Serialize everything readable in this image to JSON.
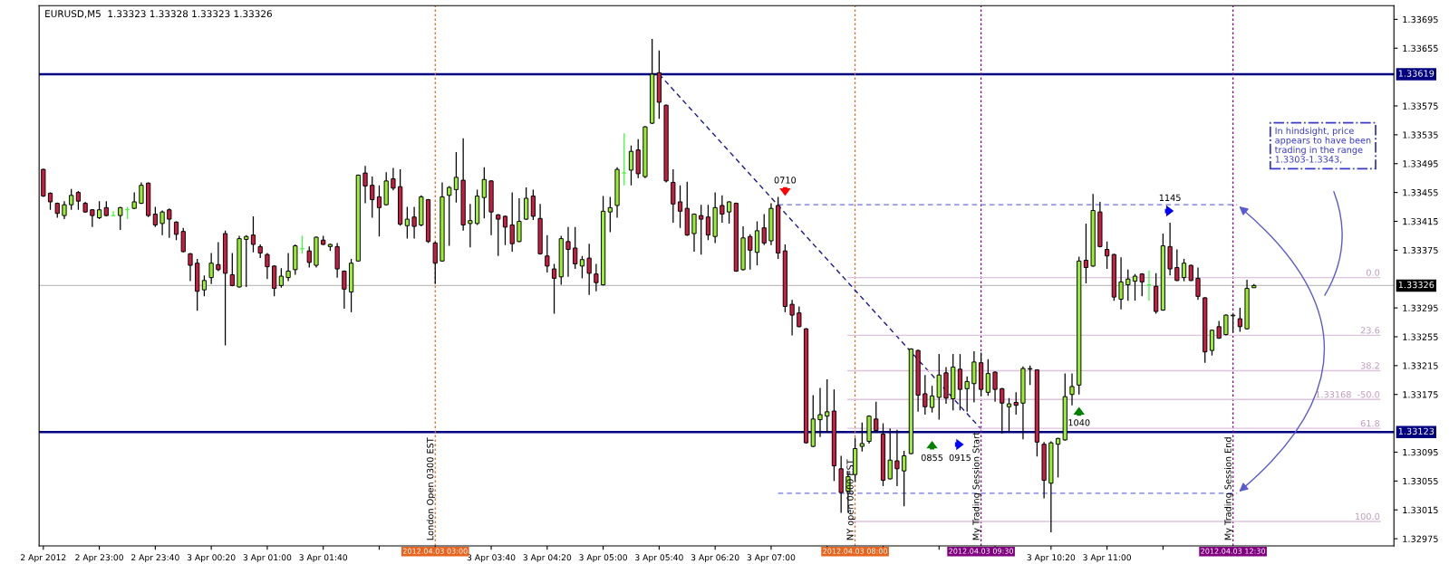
{
  "chart_data": {
    "type": "candlestick",
    "title": "EURUSD,M5  1.33323 1.33328 1.33323 1.33326",
    "x": [
      "2012-04-02T22:20",
      "2012-04-02T22:25",
      "2012-04-02T22:30",
      "2012-04-02T22:35",
      "2012-04-02T22:40",
      "2012-04-02T22:45",
      "2012-04-02T22:50",
      "2012-04-02T22:55",
      "2012-04-02T23:00",
      "2012-04-02T23:05",
      "2012-04-02T23:10",
      "2012-04-02T23:15",
      "2012-04-02T23:20",
      "2012-04-02T23:25",
      "2012-04-02T23:30",
      "2012-04-02T23:35",
      "2012-04-02T23:40",
      "2012-04-02T23:45",
      "2012-04-02T23:50",
      "2012-04-02T23:55",
      "2012-04-03T00:00",
      "2012-04-03T00:05",
      "2012-04-03T00:10",
      "2012-04-03T00:15",
      "2012-04-03T00:20",
      "2012-04-03T00:25",
      "2012-04-03T00:30",
      "2012-04-03T00:35",
      "2012-04-03T00:40",
      "2012-04-03T00:45",
      "2012-04-03T00:50",
      "2012-04-03T00:55",
      "2012-04-03T01:00",
      "2012-04-03T01:05",
      "2012-04-03T01:10",
      "2012-04-03T01:15",
      "2012-04-03T01:20",
      "2012-04-03T01:25",
      "2012-04-03T01:30",
      "2012-04-03T01:35",
      "2012-04-03T01:40",
      "2012-04-03T01:45",
      "2012-04-03T01:50",
      "2012-04-03T01:55",
      "2012-04-03T02:00",
      "2012-04-03T02:05",
      "2012-04-03T02:10",
      "2012-04-03T02:15",
      "2012-04-03T02:20",
      "2012-04-03T02:25",
      "2012-04-03T02:30",
      "2012-04-03T02:35",
      "2012-04-03T02:40",
      "2012-04-03T02:45",
      "2012-04-03T02:50",
      "2012-04-03T02:55",
      "2012-04-03T03:00",
      "2012-04-03T03:05",
      "2012-04-03T03:10",
      "2012-04-03T03:15",
      "2012-04-03T03:20",
      "2012-04-03T03:25",
      "2012-04-03T03:30",
      "2012-04-03T03:35",
      "2012-04-03T03:40",
      "2012-04-03T03:45",
      "2012-04-03T03:50",
      "2012-04-03T03:55",
      "2012-04-03T04:00",
      "2012-04-03T04:05",
      "2012-04-03T04:10",
      "2012-04-03T04:15",
      "2012-04-03T04:20",
      "2012-04-03T04:25",
      "2012-04-03T04:30",
      "2012-04-03T04:35",
      "2012-04-03T04:40",
      "2012-04-03T04:45",
      "2012-04-03T04:50",
      "2012-04-03T04:55",
      "2012-04-03T05:00",
      "2012-04-03T05:05",
      "2012-04-03T05:10",
      "2012-04-03T05:15",
      "2012-04-03T05:20",
      "2012-04-03T05:25",
      "2012-04-03T05:30",
      "2012-04-03T05:35",
      "2012-04-03T05:40",
      "2012-04-03T05:45",
      "2012-04-03T05:50",
      "2012-04-03T05:55",
      "2012-04-03T06:00",
      "2012-04-03T06:05",
      "2012-04-03T06:10",
      "2012-04-03T06:15",
      "2012-04-03T06:20",
      "2012-04-03T06:25",
      "2012-04-03T06:30",
      "2012-04-03T06:35",
      "2012-04-03T06:40",
      "2012-04-03T06:45",
      "2012-04-03T06:50",
      "2012-04-03T06:55",
      "2012-04-03T07:00",
      "2012-04-03T07:05",
      "2012-04-03T07:10",
      "2012-04-03T07:15",
      "2012-04-03T07:20",
      "2012-04-03T07:25",
      "2012-04-03T07:30",
      "2012-04-03T07:35",
      "2012-04-03T07:40",
      "2012-04-03T07:45",
      "2012-04-03T07:50",
      "2012-04-03T07:55",
      "2012-04-03T08:00",
      "2012-04-03T08:05",
      "2012-04-03T08:10",
      "2012-04-03T08:15",
      "2012-04-03T08:20",
      "2012-04-03T08:25",
      "2012-04-03T08:30",
      "2012-04-03T08:35",
      "2012-04-03T08:40",
      "2012-04-03T08:45",
      "2012-04-03T08:50",
      "2012-04-03T08:55",
      "2012-04-03T09:00",
      "2012-04-03T09:05",
      "2012-04-03T09:10",
      "2012-04-03T09:15",
      "2012-04-03T09:20",
      "2012-04-03T09:25",
      "2012-04-03T09:30",
      "2012-04-03T09:35",
      "2012-04-03T09:40",
      "2012-04-03T09:45",
      "2012-04-03T09:50",
      "2012-04-03T09:55",
      "2012-04-03T10:00",
      "2012-04-03T10:05",
      "2012-04-03T10:10",
      "2012-04-03T10:15",
      "2012-04-03T10:20",
      "2012-04-03T10:25",
      "2012-04-03T10:30",
      "2012-04-03T10:35",
      "2012-04-03T10:40",
      "2012-04-03T10:45",
      "2012-04-03T10:50",
      "2012-04-03T10:55",
      "2012-04-03T11:00",
      "2012-04-03T11:05",
      "2012-04-03T11:10",
      "2012-04-03T11:15",
      "2012-04-03T11:20",
      "2012-04-03T11:25",
      "2012-04-03T11:30",
      "2012-04-03T11:35",
      "2012-04-03T11:40",
      "2012-04-03T11:45",
      "2012-04-03T11:50",
      "2012-04-03T11:55",
      "2012-04-03T12:00",
      "2012-04-03T12:05",
      "2012-04-03T12:10",
      "2012-04-03T12:15",
      "2012-04-03T12:20",
      "2012-04-03T12:25",
      "2012-04-03T12:30",
      "2012-04-03T12:35",
      "2012-04-03T12:40",
      "2012-04-03T12:45"
    ],
    "ohlc": [
      [
        1.33487,
        1.33488,
        1.33449,
        1.3345
      ],
      [
        1.33454,
        1.33455,
        1.33431,
        1.33442
      ],
      [
        1.3344,
        1.33441,
        1.3342,
        1.33426
      ],
      [
        1.33423,
        1.33443,
        1.33418,
        1.33438
      ],
      [
        1.33438,
        1.3346,
        1.33431,
        1.33451
      ],
      [
        1.33455,
        1.33457,
        1.33431,
        1.33443
      ],
      [
        1.3344,
        1.33442,
        1.33427,
        1.33428
      ],
      [
        1.33431,
        1.33432,
        1.33407,
        1.33423
      ],
      [
        1.3342,
        1.33443,
        1.33418,
        1.33431
      ],
      [
        1.33434,
        1.33443,
        1.33422,
        1.33423
      ],
      [
        1.33423,
        1.33429,
        1.33422,
        1.33423
      ],
      [
        1.33423,
        1.33435,
        1.33403,
        1.33434
      ],
      [
        1.33431,
        1.33435,
        1.33418,
        1.33431
      ],
      [
        1.33433,
        1.33455,
        1.33432,
        1.33442
      ],
      [
        1.3344,
        1.33469,
        1.33439,
        1.33465
      ],
      [
        1.33468,
        1.33469,
        1.33421,
        1.33423
      ],
      [
        1.33425,
        1.33435,
        1.33407,
        1.3341
      ],
      [
        1.33412,
        1.3343,
        1.33396,
        1.33428
      ],
      [
        1.33431,
        1.33433,
        1.33392,
        1.33418
      ],
      [
        1.33414,
        1.33415,
        1.33389,
        1.33397
      ],
      [
        1.33401,
        1.33406,
        1.33372,
        1.33373
      ],
      [
        1.3337,
        1.33371,
        1.33332,
        1.33354
      ],
      [
        1.33357,
        1.33363,
        1.33291,
        1.33318
      ],
      [
        1.3332,
        1.3334,
        1.33311,
        1.33333
      ],
      [
        1.33337,
        1.33371,
        1.33328,
        1.33357
      ],
      [
        1.33355,
        1.33386,
        1.33346,
        1.33348
      ],
      [
        1.33398,
        1.33402,
        1.33243,
        1.33343
      ],
      [
        1.33341,
        1.33371,
        1.33325,
        1.33326
      ],
      [
        1.33324,
        1.33395,
        1.33323,
        1.33391
      ],
      [
        1.3339,
        1.33396,
        1.33324,
        1.33394
      ],
      [
        1.33396,
        1.33422,
        1.33372,
        1.33383
      ],
      [
        1.3338,
        1.33383,
        1.33364,
        1.33371
      ],
      [
        1.33369,
        1.33371,
        1.33335,
        1.33352
      ],
      [
        1.33353,
        1.33354,
        1.33311,
        1.33322
      ],
      [
        1.33326,
        1.3335,
        1.33323,
        1.33339
      ],
      [
        1.33337,
        1.33371,
        1.33332,
        1.33346
      ],
      [
        1.33348,
        1.33383,
        1.33341,
        1.33381
      ],
      [
        1.33377,
        1.33395,
        1.3337,
        1.33377
      ],
      [
        1.33374,
        1.3338,
        1.33351,
        1.33358
      ],
      [
        1.33354,
        1.33394,
        1.33351,
        1.33393
      ],
      [
        1.33389,
        1.33395,
        1.33382,
        1.33383
      ],
      [
        1.3338,
        1.33384,
        1.33374,
        1.33383
      ],
      [
        1.3338,
        1.33385,
        1.33337,
        1.33349
      ],
      [
        1.33346,
        1.33347,
        1.33294,
        1.33321
      ],
      [
        1.33317,
        1.33363,
        1.33289,
        1.33357
      ],
      [
        1.3336,
        1.3348,
        1.33359,
        1.33479
      ],
      [
        1.33482,
        1.33492,
        1.3344,
        1.33464
      ],
      [
        1.33465,
        1.33477,
        1.3342,
        1.33445
      ],
      [
        1.33449,
        1.33465,
        1.33394,
        1.33434
      ],
      [
        1.33438,
        1.33483,
        1.33437,
        1.33471
      ],
      [
        1.33474,
        1.33489,
        1.33458,
        1.33461
      ],
      [
        1.33463,
        1.33487,
        1.33409,
        1.33411
      ],
      [
        1.33409,
        1.33435,
        1.33391,
        1.33418
      ],
      [
        1.33421,
        1.33435,
        1.33391,
        1.33408
      ],
      [
        1.3341,
        1.33451,
        1.33408,
        1.33449
      ],
      [
        1.33445,
        1.33446,
        1.33385,
        1.33387
      ],
      [
        1.33385,
        1.33387,
        1.33328,
        1.33357
      ],
      [
        1.3336,
        1.33469,
        1.33359,
        1.33449
      ],
      [
        1.33451,
        1.33464,
        1.33381,
        1.33462
      ],
      [
        1.33459,
        1.33511,
        1.33441,
        1.33476
      ],
      [
        1.33472,
        1.3353,
        1.33402,
        1.3341
      ],
      [
        1.33412,
        1.33439,
        1.33379,
        1.33416
      ],
      [
        1.33412,
        1.33459,
        1.3341,
        1.3345
      ],
      [
        1.33448,
        1.3349,
        1.33419,
        1.33473
      ],
      [
        1.33471,
        1.33472,
        1.33396,
        1.33428
      ],
      [
        1.33424,
        1.33425,
        1.33367,
        1.33418
      ],
      [
        1.33422,
        1.33423,
        1.33382,
        1.33407
      ],
      [
        1.3341,
        1.33455,
        1.33373,
        1.33384
      ],
      [
        1.33387,
        1.33447,
        1.33386,
        1.33415
      ],
      [
        1.33418,
        1.33462,
        1.33417,
        1.33447
      ],
      [
        1.3345,
        1.33459,
        1.33417,
        1.33422
      ],
      [
        1.33419,
        1.33439,
        1.33369,
        1.3337
      ],
      [
        1.33367,
        1.33396,
        1.33344,
        1.33353
      ],
      [
        1.33349,
        1.33356,
        1.33287,
        1.33336
      ],
      [
        1.33338,
        1.33395,
        1.33327,
        1.33391
      ],
      [
        1.33387,
        1.33407,
        1.33338,
        1.33376
      ],
      [
        1.33378,
        1.33407,
        1.33349,
        1.33356
      ],
      [
        1.33353,
        1.33367,
        1.33336,
        1.33362
      ],
      [
        1.33364,
        1.33384,
        1.33313,
        1.33343
      ],
      [
        1.33342,
        1.33356,
        1.33318,
        1.3333
      ],
      [
        1.33327,
        1.3345,
        1.33326,
        1.33429
      ],
      [
        1.33428,
        1.33449,
        1.334,
        1.33434
      ],
      [
        1.33437,
        1.3349,
        1.3342,
        1.33487
      ],
      [
        1.33482,
        1.33537,
        1.33465,
        1.33482
      ],
      [
        1.33486,
        1.3352,
        1.33465,
        1.33512
      ],
      [
        1.33514,
        1.33529,
        1.33475,
        1.33481
      ],
      [
        1.33477,
        1.33547,
        1.33475,
        1.33546
      ],
      [
        1.33551,
        1.33668,
        1.3355,
        1.33619
      ],
      [
        1.33621,
        1.33652,
        1.33557,
        1.3358
      ],
      [
        1.33576,
        1.33577,
        1.33469,
        1.33471
      ],
      [
        1.33469,
        1.33487,
        1.33413,
        1.33439
      ],
      [
        1.33442,
        1.33465,
        1.33406,
        1.33429
      ],
      [
        1.33433,
        1.3347,
        1.33395,
        1.33396
      ],
      [
        1.33398,
        1.33426,
        1.33373,
        1.33425
      ],
      [
        1.33423,
        1.33438,
        1.33369,
        1.33418
      ],
      [
        1.33421,
        1.33438,
        1.33389,
        1.33396
      ],
      [
        1.33394,
        1.33455,
        1.33385,
        1.33434
      ],
      [
        1.33437,
        1.33451,
        1.33413,
        1.33425
      ],
      [
        1.33428,
        1.33443,
        1.33412,
        1.33442
      ],
      [
        1.3344,
        1.33441,
        1.33345,
        1.33346
      ],
      [
        1.33348,
        1.33408,
        1.33347,
        1.33392
      ],
      [
        1.33394,
        1.33397,
        1.33348,
        1.33375
      ],
      [
        1.33372,
        1.33415,
        1.33354,
        1.33402
      ],
      [
        1.33406,
        1.33425,
        1.33382,
        1.33385
      ],
      [
        1.33388,
        1.3344,
        1.33382,
        1.33433
      ],
      [
        1.33437,
        1.33449,
        1.33363,
        1.33371
      ],
      [
        1.33374,
        1.33383,
        1.33289,
        1.33297
      ],
      [
        1.333,
        1.33306,
        1.33257,
        1.33285
      ],
      [
        1.33288,
        1.33297,
        1.33268,
        1.33269
      ],
      [
        1.33266,
        1.33267,
        1.33107,
        1.33108
      ],
      [
        1.33103,
        1.33174,
        1.33102,
        1.33141
      ],
      [
        1.3314,
        1.33184,
        1.33116,
        1.33147
      ],
      [
        1.33145,
        1.33196,
        1.33122,
        1.33151
      ],
      [
        1.33152,
        1.33182,
        1.33055,
        1.33076
      ],
      [
        1.33072,
        1.3309,
        1.33011,
        1.33039
      ],
      [
        1.33041,
        1.33069,
        1.33011,
        1.33061
      ],
      [
        1.33064,
        1.33115,
        1.33054,
        1.331
      ],
      [
        1.33103,
        1.33136,
        1.33096,
        1.33107
      ],
      [
        1.3311,
        1.33146,
        1.33107,
        1.33145
      ],
      [
        1.33141,
        1.33165,
        1.33122,
        1.33125
      ],
      [
        1.3312,
        1.33135,
        1.33048,
        1.33056
      ],
      [
        1.33058,
        1.33128,
        1.33057,
        1.33084
      ],
      [
        1.33083,
        1.33126,
        1.33048,
        1.33072
      ],
      [
        1.33069,
        1.33097,
        1.3302,
        1.3309
      ],
      [
        1.33093,
        1.33239,
        1.33092,
        1.33238
      ],
      [
        1.33236,
        1.33237,
        1.33151,
        1.33174
      ],
      [
        1.33176,
        1.33202,
        1.33147,
        1.33158
      ],
      [
        1.33157,
        1.33187,
        1.3315,
        1.33173
      ],
      [
        1.33171,
        1.33231,
        1.3314,
        1.33202
      ],
      [
        1.33205,
        1.33213,
        1.33162,
        1.3317
      ],
      [
        1.33169,
        1.33231,
        1.33153,
        1.33213
      ],
      [
        1.3321,
        1.33231,
        1.33153,
        1.33182
      ],
      [
        1.33183,
        1.332,
        1.33151,
        1.33193
      ],
      [
        1.3319,
        1.33235,
        1.33164,
        1.3322
      ],
      [
        1.33219,
        1.33233,
        1.33173,
        1.33182
      ],
      [
        1.33178,
        1.33224,
        1.33173,
        1.33204
      ],
      [
        1.33206,
        1.33207,
        1.33165,
        1.33182
      ],
      [
        1.33183,
        1.33184,
        1.33121,
        1.33163
      ],
      [
        1.33158,
        1.3317,
        1.33124,
        1.33162
      ],
      [
        1.33164,
        1.33178,
        1.33147,
        1.3316
      ],
      [
        1.33163,
        1.33214,
        1.33113,
        1.33211
      ],
      [
        1.3321,
        1.33215,
        1.33188,
        1.33211
      ],
      [
        1.33209,
        1.3321,
        1.33089,
        1.33109
      ],
      [
        1.33106,
        1.33109,
        1.33031,
        1.33056
      ],
      [
        1.33052,
        1.3311,
        1.32984,
        1.33108
      ],
      [
        1.33106,
        1.33115,
        1.3306,
        1.33114
      ],
      [
        1.33112,
        1.33204,
        1.33111,
        1.33172
      ],
      [
        1.33175,
        1.33204,
        1.3316,
        1.33186
      ],
      [
        1.33188,
        1.33366,
        1.33175,
        1.3336
      ],
      [
        1.33361,
        1.33412,
        1.33329,
        1.33351
      ],
      [
        1.33353,
        1.33453,
        1.33352,
        1.3343
      ],
      [
        1.33428,
        1.33442,
        1.33379,
        1.3338
      ],
      [
        1.33376,
        1.33387,
        1.33349,
        1.33367
      ],
      [
        1.33369,
        1.3337,
        1.33305,
        1.3331
      ],
      [
        1.33307,
        1.33365,
        1.33293,
        1.33331
      ],
      [
        1.33327,
        1.33348,
        1.33305,
        1.33335
      ],
      [
        1.33332,
        1.33342,
        1.33305,
        1.33339
      ],
      [
        1.33342,
        1.33343,
        1.33311,
        1.33331
      ],
      [
        1.33327,
        1.33347,
        1.33305,
        1.33327
      ],
      [
        1.33325,
        1.33343,
        1.33287,
        1.3329
      ],
      [
        1.33292,
        1.33398,
        1.33291,
        1.33381
      ],
      [
        1.3338,
        1.33413,
        1.3334,
        1.33349
      ],
      [
        1.33351,
        1.33376,
        1.33332,
        1.33333
      ],
      [
        1.33337,
        1.33363,
        1.33332,
        1.33357
      ],
      [
        1.33354,
        1.33355,
        1.33332,
        1.33333
      ],
      [
        1.33336,
        1.33351,
        1.33306,
        1.33311
      ],
      [
        1.33309,
        1.3331,
        1.33219,
        1.33234
      ],
      [
        1.33236,
        1.33265,
        1.33229,
        1.33264
      ],
      [
        1.33269,
        1.33277,
        1.33252,
        1.33253
      ],
      [
        1.33258,
        1.33286,
        1.33257,
        1.33285
      ],
      [
        1.33284,
        1.33286,
        1.33261,
        1.33285
      ],
      [
        1.3328,
        1.33295,
        1.33262,
        1.33269
      ],
      [
        1.33266,
        1.33334,
        1.33265,
        1.33322
      ],
      [
        1.33323,
        1.33328,
        1.33323,
        1.33326
      ]
    ],
    "colors": [
      "#c81e41",
      "#c81e41",
      "#c81e41",
      "#99ee33",
      "#99ee33",
      "#c81e41",
      "#c81e41",
      "#c81e41",
      "#99ee33",
      "#c81e41",
      "#33ff33",
      "#99ee33",
      "#33ff33",
      "#99ee33",
      "#99ee33",
      "#c81e41",
      "#c81e41",
      "#99ee33",
      "#c81e41",
      "#c81e41",
      "#c81e41",
      "#c81e41",
      "#c81e41",
      "#99ee33",
      "#99ee33",
      "#c81e41",
      "#c81e41",
      "#c81e41",
      "#99ee33",
      "#99ee33",
      "#c81e41",
      "#c81e41",
      "#c81e41",
      "#c81e41",
      "#99ee33",
      "#99ee33",
      "#99ee33",
      "#33ff33",
      "#c81e41",
      "#99ee33",
      "#c81e41",
      "#99ee33",
      "#c81e41",
      "#c81e41",
      "#99ee33",
      "#99ee33",
      "#c81e41",
      "#c81e41",
      "#c81e41",
      "#99ee33",
      "#c81e41",
      "#c81e41",
      "#99ee33",
      "#c81e41",
      "#99ee33",
      "#c81e41",
      "#c81e41",
      "#99ee33",
      "#99ee33",
      "#99ee33",
      "#c81e41",
      "#99ee33",
      "#99ee33",
      "#99ee33",
      "#c81e41",
      "#c81e41",
      "#c81e41",
      "#c81e41",
      "#99ee33",
      "#99ee33",
      "#c81e41",
      "#c81e41",
      "#c81e41",
      "#c81e41",
      "#99ee33",
      "#c81e41",
      "#c81e41",
      "#99ee33",
      "#c81e41",
      "#c81e41",
      "#99ee33",
      "#99ee33",
      "#99ee33",
      "#33ff33",
      "#99ee33",
      "#c81e41",
      "#99ee33",
      "#99ee33",
      "#c81e41",
      "#c81e41",
      "#c81e41",
      "#c81e41",
      "#c81e41",
      "#99ee33",
      "#c81e41",
      "#c81e41",
      "#99ee33",
      "#c81e41",
      "#99ee33",
      "#c81e41",
      "#99ee33",
      "#c81e41",
      "#99ee33",
      "#c81e41",
      "#99ee33",
      "#c81e41",
      "#c81e41",
      "#c81e41",
      "#c81e41",
      "#c81e41",
      "#99ee33",
      "#99ee33",
      "#99ee33",
      "#c81e41",
      "#c81e41",
      "#99ee33",
      "#99ee33",
      "#99ee33",
      "#99ee33",
      "#c81e41",
      "#c81e41",
      "#99ee33",
      "#c81e41",
      "#99ee33",
      "#99ee33",
      "#c81e41",
      "#c81e41",
      "#99ee33",
      "#99ee33",
      "#c81e41",
      "#99ee33",
      "#c81e41",
      "#99ee33",
      "#99ee33",
      "#c81e41",
      "#99ee33",
      "#c81e41",
      "#c81e41",
      "#99ee33",
      "#c81e41",
      "#99ee33",
      "#99ee33",
      "#c81e41",
      "#c81e41",
      "#99ee33",
      "#99ee33",
      "#99ee33",
      "#99ee33",
      "#99ee33",
      "#c81e41",
      "#99ee33",
      "#c81e41",
      "#c81e41",
      "#c81e41",
      "#99ee33",
      "#99ee33",
      "#99ee33",
      "#c81e41",
      "#33ff33",
      "#c81e41",
      "#99ee33",
      "#c81e41",
      "#c81e41",
      "#99ee33",
      "#c81e41",
      "#c81e41",
      "#c81e41",
      "#99ee33",
      "#c81e41",
      "#99ee33",
      "#99ee33",
      "#c81e41",
      "#99ee33",
      "#99ee33"
    ],
    "series": [
      {
        "type": "line",
        "x": [
          "2012-04-03T05:40",
          "2012-04-03T09:30"
        ],
        "values": [
          1.33619,
          1.33127
        ],
        "color": "#1a1a8c",
        "line_style": "dashed"
      },
      {
        "type": "line",
        "x": [
          "2012-04-03T07:05",
          "2012-04-03T12:33"
        ],
        "values": [
          1.33438,
          1.33438
        ],
        "color": "#7070e0",
        "line_style": "dashed"
      },
      {
        "type": "line",
        "x": [
          "2012-04-03T07:05",
          "2012-04-03T12:33"
        ],
        "values": [
          1.33038,
          1.33038
        ],
        "color": "#7070e0",
        "line_style": "dashed"
      },
      {
        "type": "line",
        "x": [
          "2012-04-03T07:55",
          "2012-04-03T14:15"
        ],
        "values": [
          1.33337,
          1.33337
        ],
        "color": "#dcc4dc",
        "line_style": "solid"
      },
      {
        "type": "line",
        "x": [
          "2012-04-03T07:55",
          "2012-04-03T14:15"
        ],
        "values": [
          1.33257,
          1.33257
        ],
        "color": "#dcc4dc",
        "line_style": "solid"
      },
      {
        "type": "line",
        "x": [
          "2012-04-03T07:55",
          "2012-04-03T14:15"
        ],
        "values": [
          1.33208,
          1.33208
        ],
        "color": "#dcc4dc",
        "line_style": "solid"
      },
      {
        "type": "line",
        "x": [
          "2012-04-03T07:55",
          "2012-04-03T14:15"
        ],
        "values": [
          1.33168,
          1.33168
        ],
        "color": "#dcc4dc",
        "line_style": "solid"
      },
      {
        "type": "line",
        "x": [
          "2012-04-03T07:55",
          "2012-04-03T14:15"
        ],
        "values": [
          1.33128,
          1.33128
        ],
        "color": "#dcc4dc",
        "line_style": "solid"
      },
      {
        "type": "line",
        "x": [
          "2012-04-03T07:55",
          "2012-04-03T14:15"
        ],
        "values": [
          1.32999,
          1.32999
        ],
        "color": "#dcc4dc",
        "line_style": "solid"
      }
    ],
    "ref_lines": [
      {
        "axis": "y",
        "value": 1.33619,
        "label": "1.33619",
        "color": "#000080",
        "line_style": "solid"
      },
      {
        "axis": "y",
        "value": 1.33123,
        "label": "1.33123",
        "color": "#000080",
        "line_style": "solid"
      },
      {
        "axis": "y",
        "value": 1.33326,
        "label": "1.33326",
        "color": "#c0c0c0",
        "line_style": "solid"
      },
      {
        "axis": "x",
        "value": "2012-04-03T03:00",
        "label": "London Open 0300 EST",
        "color": "#e8641e",
        "line_style": "dotted"
      },
      {
        "axis": "x",
        "value": "2012-04-03T08:00",
        "label": "NY open 0800 EST",
        "color": "#e8641e",
        "line_style": "dotted"
      },
      {
        "axis": "x",
        "value": "2012-04-03T09:30",
        "label": "My Trading Session Start",
        "color": "#800080",
        "line_style": "dotted"
      },
      {
        "axis": "x",
        "value": "2012-04-03T12:30",
        "label": "My Trading Session End",
        "color": "#800080",
        "line_style": "dotted"
      }
    ],
    "annotations": [
      {
        "text": "0710",
        "x": "2012-04-03T07:10",
        "y": 1.33438
      },
      {
        "text": "0855",
        "x": "2012-04-03T08:55",
        "y": 1.33123
      },
      {
        "text": "0915",
        "x": "2012-04-03T09:15",
        "y": 1.33123
      },
      {
        "text": "1040",
        "x": "2012-04-03T10:40",
        "y": 1.33175
      },
      {
        "text": "1145",
        "x": "2012-04-03T11:45",
        "y": 1.33438
      },
      {
        "text": "0.0",
        "x": "2012-04-03T14:15",
        "y": 1.33337
      },
      {
        "text": "23.6",
        "x": "2012-04-03T14:15",
        "y": 1.33257
      },
      {
        "text": "38.2",
        "x": "2012-04-03T14:15",
        "y": 1.33208
      },
      {
        "text": "1.33168  -50.0",
        "x": "2012-04-03T14:15",
        "y": 1.33168
      },
      {
        "text": "61.8",
        "x": "2012-04-03T14:15",
        "y": 1.33128
      },
      {
        "text": "100.0",
        "x": "2012-04-03T14:15",
        "y": 1.32999
      },
      "2012.04.03 03:00",
      "2012.04.03 08:00",
      "2012.04.03 09:30",
      "2012.04.03 12:30",
      "In hindsight, price\nappears to have been\ntrading in the range\n1.3303-1.3343,"
    ],
    "xlim": [
      "2012-04-02T22:17",
      "2012-04-03T14:25"
    ],
    "xticks": [
      {
        "value": "2012-04-02T22:20",
        "label": "2 Apr 2012"
      },
      {
        "value": "2012-04-02T23:00",
        "label": "2 Apr 23:00"
      },
      {
        "value": "2012-04-02T23:40",
        "label": "2 Apr 23:40"
      },
      {
        "value": "2012-04-03T00:20",
        "label": "3 Apr 00:20"
      },
      {
        "value": "2012-04-03T01:00",
        "label": "3 Apr 01:00"
      },
      {
        "value": "2012-04-03T01:40",
        "label": "3 Apr 01:40"
      },
      {
        "value": "2012-04-03T02:20",
        "label": null
      },
      {
        "value": "2012-04-03T03:00",
        "label": null
      },
      {
        "value": "2012-04-03T03:40",
        "label": "3 Apr 03:40"
      },
      {
        "value": "2012-04-03T04:20",
        "label": "3 Apr 04:20"
      },
      {
        "value": "2012-04-03T05:00",
        "label": "3 Apr 05:00"
      },
      {
        "value": "2012-04-03T05:40",
        "label": "3 Apr 05:40"
      },
      {
        "value": "2012-04-03T06:20",
        "label": "3 Apr 06:20"
      },
      {
        "value": "2012-04-03T07:00",
        "label": "3 Apr 07:00"
      },
      {
        "value": "2012-04-03T07:40",
        "label": null
      },
      {
        "value": "2012-04-03T08:20",
        "label": null
      },
      {
        "value": "2012-04-03T09:00",
        "label": null
      },
      {
        "value": "2012-04-03T09:40",
        "label": null
      },
      {
        "value": "2012-04-03T10:20",
        "label": "3 Apr 10:20"
      },
      {
        "value": "2012-04-03T11:00",
        "label": "3 Apr 11:00"
      },
      {
        "value": "2012-04-03T11:40",
        "label": null
      }
    ],
    "ylim": [
      1.32965,
      1.33714
    ],
    "yticks": [
      1.33695,
      1.33655,
      1.33575,
      1.33535,
      1.33495,
      1.33455,
      1.33415,
      1.33375,
      1.33295,
      1.33255,
      1.33215,
      1.33175,
      1.33095,
      1.33055,
      1.33015,
      1.32975
    ]
  }
}
